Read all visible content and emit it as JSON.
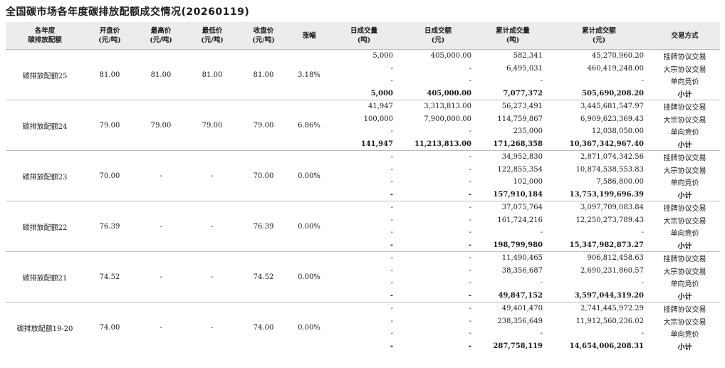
{
  "title": "全国碳市场各年度碳排放配额成交情况(20260119)",
  "headers": [
    [
      "各年度",
      "碳排放配额"
    ],
    [
      "开盘价",
      "(元/吨)"
    ],
    [
      "最高价",
      "(元/吨)"
    ],
    [
      "最低价",
      "(元/吨)"
    ],
    [
      "收盘价",
      "(元/吨)"
    ],
    [
      "涨幅",
      ""
    ],
    [
      "日成交量",
      "(吨)"
    ],
    [
      "日成交额",
      "(元)"
    ],
    [
      "累计成交量",
      "(吨)"
    ],
    [
      "累计成交额",
      "(元)"
    ],
    [
      "交易方式",
      ""
    ]
  ],
  "groups": [
    {
      "name": "碳排放配额25",
      "open": "81.00",
      "high": "81.00",
      "low": "81.00",
      "close": "81.00",
      "change": "3.18%",
      "rows": [
        [
          "5,000",
          "405,000.00",
          "582,341",
          "45,270,960.20",
          "挂牌协议交易"
        ],
        [
          "-",
          "-",
          "6,495,031",
          "460,419,248.00",
          "大宗协议交易"
        ],
        [
          "-",
          "-",
          "-",
          "-",
          "单向竞价"
        ],
        [
          "5,000",
          "405,000.00",
          "7,077,372",
          "505,690,208.20",
          "小计"
        ]
      ]
    },
    {
      "name": "碳排放配额24",
      "open": "79.00",
      "high": "79.00",
      "low": "79.00",
      "close": "79.00",
      "change": "6.86%",
      "rows": [
        [
          "41,947",
          "3,313,813.00",
          "56,273,491",
          "3,445,681,547.97",
          "挂牌协议交易"
        ],
        [
          "100,000",
          "7,900,000.00",
          "114,759,867",
          "6,909,623,369.43",
          "大宗协议交易"
        ],
        [
          "-",
          "-",
          "235,000",
          "12,038,050.00",
          "单向竞价"
        ],
        [
          "141,947",
          "11,213,813.00",
          "171,268,358",
          "10,367,342,967.40",
          "小计"
        ]
      ]
    },
    {
      "name": "碳排放配额23",
      "open": "70.00",
      "high": "-",
      "low": "-",
      "close": "70.00",
      "change": "0.00%",
      "rows": [
        [
          "-",
          "-",
          "34,952,830",
          "2,871,074,342.56",
          "挂牌协议交易"
        ],
        [
          "-",
          "-",
          "122,855,354",
          "10,874,538,553.83",
          "大宗协议交易"
        ],
        [
          "-",
          "-",
          "102,000",
          "7,586,800.00",
          "单向竞价"
        ],
        [
          "-",
          "-",
          "157,910,184",
          "13,753,199,696.39",
          "小计"
        ]
      ]
    },
    {
      "name": "碳排放配额22",
      "open": "76.39",
      "high": "-",
      "low": "-",
      "close": "76.39",
      "change": "0.00%",
      "rows": [
        [
          "-",
          "-",
          "37,075,764",
          "3,097,709,083.84",
          "挂牌协议交易"
        ],
        [
          "-",
          "-",
          "161,724,216",
          "12,250,273,789.43",
          "大宗协议交易"
        ],
        [
          "-",
          "-",
          "-",
          "-",
          "单向竞价"
        ],
        [
          "-",
          "-",
          "198,799,980",
          "15,347,982,873.27",
          "小计"
        ]
      ]
    },
    {
      "name": "碳排放配额21",
      "open": "74.52",
      "high": "-",
      "low": "-",
      "close": "74.52",
      "change": "0.00%",
      "rows": [
        [
          "-",
          "-",
          "11,490,465",
          "906,812,458.63",
          "挂牌协议交易"
        ],
        [
          "-",
          "-",
          "38,356,687",
          "2,690,231,860.57",
          "大宗协议交易"
        ],
        [
          "-",
          "-",
          "-",
          "-",
          "单向竞价"
        ],
        [
          "-",
          "-",
          "49,847,152",
          "3,597,044,319.20",
          "小计"
        ]
      ]
    },
    {
      "name": "碳排放配额19-20",
      "open": "74.00",
      "high": "-",
      "low": "-",
      "close": "74.00",
      "change": "0.00%",
      "rows": [
        [
          "-",
          "-",
          "49,401,470",
          "2,741,445,972.29",
          "挂牌协议交易"
        ],
        [
          "-",
          "-",
          "238,356,649",
          "11,912,560,236.02",
          "大宗协议交易"
        ],
        [
          "-",
          "-",
          "-",
          "-",
          "单向竞价"
        ],
        [
          "-",
          "-",
          "287,758,119",
          "14,654,006,208.31",
          "小计"
        ]
      ]
    }
  ]
}
